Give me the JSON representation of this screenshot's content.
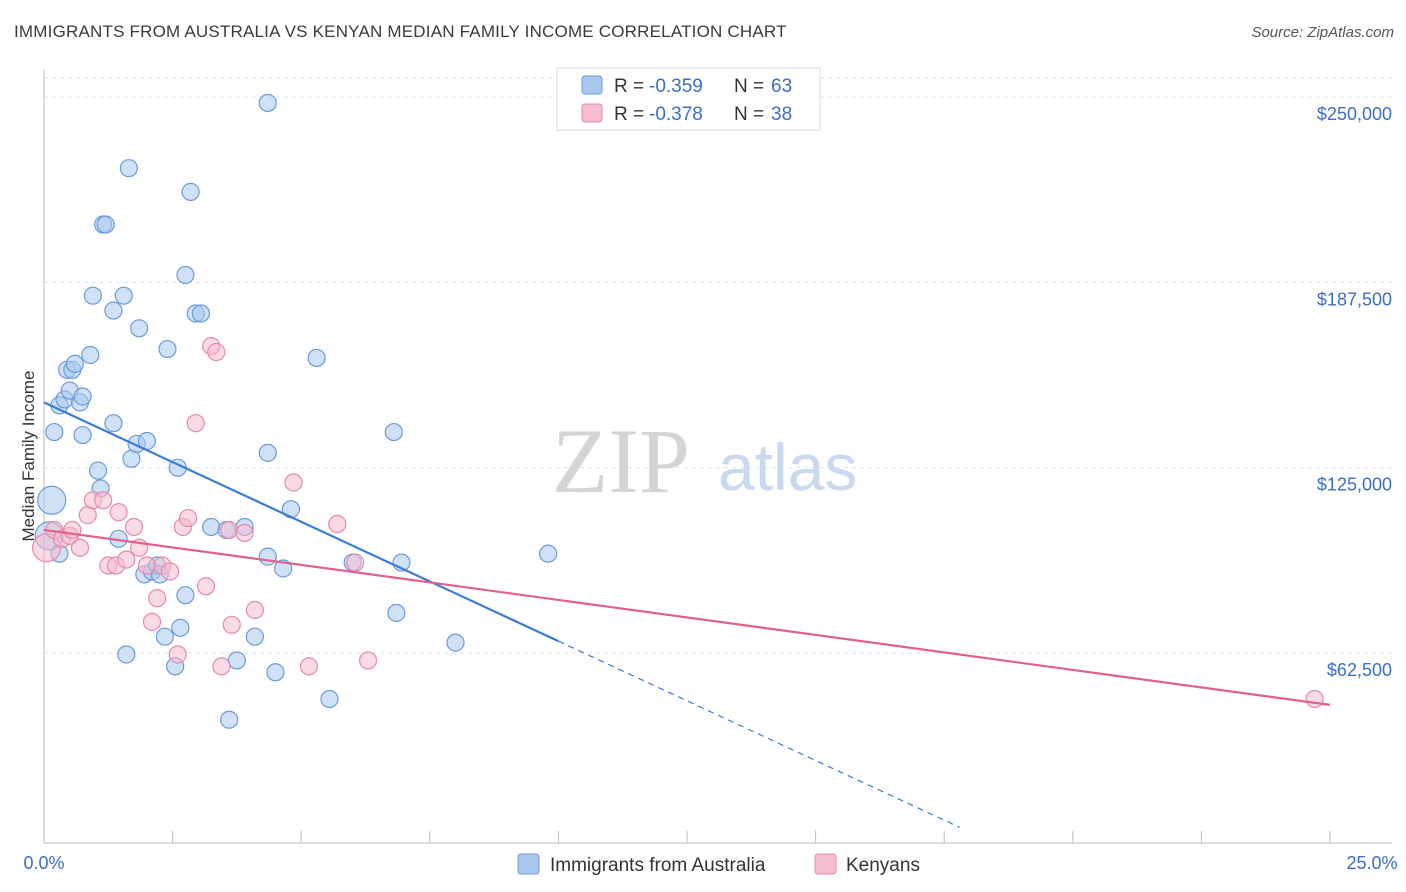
{
  "title": "IMMIGRANTS FROM AUSTRALIA VS KENYAN MEDIAN FAMILY INCOME CORRELATION CHART",
  "source": "Source: ZipAtlas.com",
  "watermark": {
    "left": "ZIP",
    "right": "atlas"
  },
  "colors": {
    "blue": "#3a7bd5",
    "blue_fill": "#a9c8ee",
    "pink": "#e0608e",
    "pink_fill": "#f6bcd0",
    "tick": "#3b6fc4"
  },
  "stats_legend": [
    {
      "r_label": "R =",
      "r_value": "-0.359",
      "n_label": "N =",
      "n_value": "63"
    },
    {
      "r_label": "R =",
      "r_value": "-0.378",
      "n_label": "N =",
      "n_value": "38"
    }
  ],
  "chart_data": {
    "type": "scatter",
    "title": "IMMIGRANTS FROM AUSTRALIA VS KENYAN MEDIAN FAMILY INCOME CORRELATION CHART",
    "xlabel": "",
    "ylabel": "Median Family Income",
    "xlim": [
      0,
      25
    ],
    "ylim": [
      0,
      250000
    ],
    "x_tick_labels": [
      "0.0%",
      "25.0%"
    ],
    "y_ticks": [
      62500,
      125000,
      187500,
      250000
    ],
    "y_tick_labels": [
      "$62,500",
      "$125,000",
      "$187,500",
      "$250,000"
    ],
    "grid": true,
    "series": [
      {
        "name": "Immigrants from Australia",
        "color": "blue",
        "r": -0.359,
        "n": 63,
        "trend": {
          "x0": 0.0,
          "y0": 147000,
          "x1": 10.0,
          "y1": 66500,
          "dash_to_x": 17.8
        },
        "points": [
          [
            0.15,
            114000,
            1
          ],
          [
            0.1,
            102000,
            1
          ],
          [
            0.2,
            137000,
            0
          ],
          [
            0.3,
            146000,
            0
          ],
          [
            0.4,
            148000,
            0
          ],
          [
            0.45,
            158000,
            0
          ],
          [
            0.55,
            158000,
            0
          ],
          [
            0.5,
            151000,
            0
          ],
          [
            0.6,
            160000,
            0
          ],
          [
            0.7,
            147000,
            0
          ],
          [
            0.75,
            149000,
            0
          ],
          [
            0.75,
            136000,
            0
          ],
          [
            0.9,
            163000,
            0
          ],
          [
            0.95,
            183000,
            0
          ],
          [
            1.05,
            124000,
            0
          ],
          [
            1.1,
            118000,
            0
          ],
          [
            1.15,
            207000,
            0
          ],
          [
            1.2,
            207000,
            0
          ],
          [
            1.35,
            178000,
            0
          ],
          [
            1.35,
            140000,
            0
          ],
          [
            1.45,
            101000,
            0
          ],
          [
            1.55,
            183000,
            0
          ],
          [
            1.6,
            62000,
            0
          ],
          [
            1.65,
            226000,
            0
          ],
          [
            1.7,
            128000,
            0
          ],
          [
            1.8,
            133000,
            0
          ],
          [
            1.85,
            172000,
            0
          ],
          [
            1.95,
            89000,
            0
          ],
          [
            2.0,
            134000,
            0
          ],
          [
            2.1,
            90000,
            0
          ],
          [
            2.2,
            92000,
            0
          ],
          [
            2.25,
            89000,
            0
          ],
          [
            2.35,
            68000,
            0
          ],
          [
            2.4,
            165000,
            0
          ],
          [
            2.55,
            58000,
            0
          ],
          [
            2.6,
            125000,
            0
          ],
          [
            2.65,
            71000,
            0
          ],
          [
            2.75,
            190000,
            0
          ],
          [
            2.75,
            82000,
            0
          ],
          [
            2.85,
            218000,
            0
          ],
          [
            2.95,
            177000,
            0
          ],
          [
            3.05,
            177000,
            0
          ],
          [
            3.25,
            105000,
            0
          ],
          [
            3.55,
            104000,
            0
          ],
          [
            3.6,
            40000,
            0
          ],
          [
            3.75,
            60000,
            0
          ],
          [
            3.9,
            105000,
            0
          ],
          [
            4.1,
            68000,
            0
          ],
          [
            4.35,
            130000,
            0
          ],
          [
            4.35,
            95000,
            0
          ],
          [
            4.5,
            56000,
            0
          ],
          [
            4.65,
            91000,
            0
          ],
          [
            4.8,
            111000,
            0
          ],
          [
            5.3,
            162000,
            0
          ],
          [
            5.55,
            47000,
            0
          ],
          [
            6.0,
            93000,
            0
          ],
          [
            6.85,
            76000,
            0
          ],
          [
            6.8,
            137000,
            0
          ],
          [
            6.95,
            93000,
            0
          ],
          [
            8.0,
            66000,
            0
          ],
          [
            9.8,
            96000,
            0
          ],
          [
            4.35,
            248000,
            0
          ],
          [
            0.3,
            96000,
            0
          ]
        ]
      },
      {
        "name": "Kenyans",
        "color": "pink",
        "r": -0.378,
        "n": 38,
        "trend": {
          "x0": 0.0,
          "y0": 104000,
          "x1": 25.0,
          "y1": 45000
        },
        "points": [
          [
            0.05,
            98000,
            1
          ],
          [
            0.2,
            104000,
            0
          ],
          [
            0.35,
            101000,
            0
          ],
          [
            0.5,
            102000,
            0
          ],
          [
            0.55,
            104000,
            0
          ],
          [
            0.7,
            98000,
            0
          ],
          [
            0.85,
            109000,
            0
          ],
          [
            0.95,
            114000,
            0
          ],
          [
            1.15,
            114000,
            0
          ],
          [
            1.25,
            92000,
            0
          ],
          [
            1.4,
            92000,
            0
          ],
          [
            1.45,
            110000,
            0
          ],
          [
            1.6,
            94000,
            0
          ],
          [
            1.75,
            105000,
            0
          ],
          [
            1.85,
            98000,
            0
          ],
          [
            2.0,
            92000,
            0
          ],
          [
            2.1,
            73000,
            0
          ],
          [
            2.2,
            81000,
            0
          ],
          [
            2.3,
            92000,
            0
          ],
          [
            2.45,
            90000,
            0
          ],
          [
            2.6,
            62000,
            0
          ],
          [
            2.7,
            105000,
            0
          ],
          [
            2.8,
            108000,
            0
          ],
          [
            2.95,
            140000,
            0
          ],
          [
            3.15,
            85000,
            0
          ],
          [
            3.25,
            166000,
            0
          ],
          [
            3.35,
            164000,
            0
          ],
          [
            3.45,
            58000,
            0
          ],
          [
            3.6,
            104000,
            0
          ],
          [
            3.65,
            72000,
            0
          ],
          [
            3.9,
            103000,
            0
          ],
          [
            4.1,
            77000,
            0
          ],
          [
            4.85,
            120000,
            0
          ],
          [
            5.15,
            58000,
            0
          ],
          [
            5.7,
            106000,
            0
          ],
          [
            6.05,
            93000,
            0
          ],
          [
            6.3,
            60000,
            0
          ],
          [
            24.7,
            47000,
            0
          ]
        ]
      }
    ]
  },
  "legend": {
    "series1": "Immigrants from Australia",
    "series2": "Kenyans"
  }
}
